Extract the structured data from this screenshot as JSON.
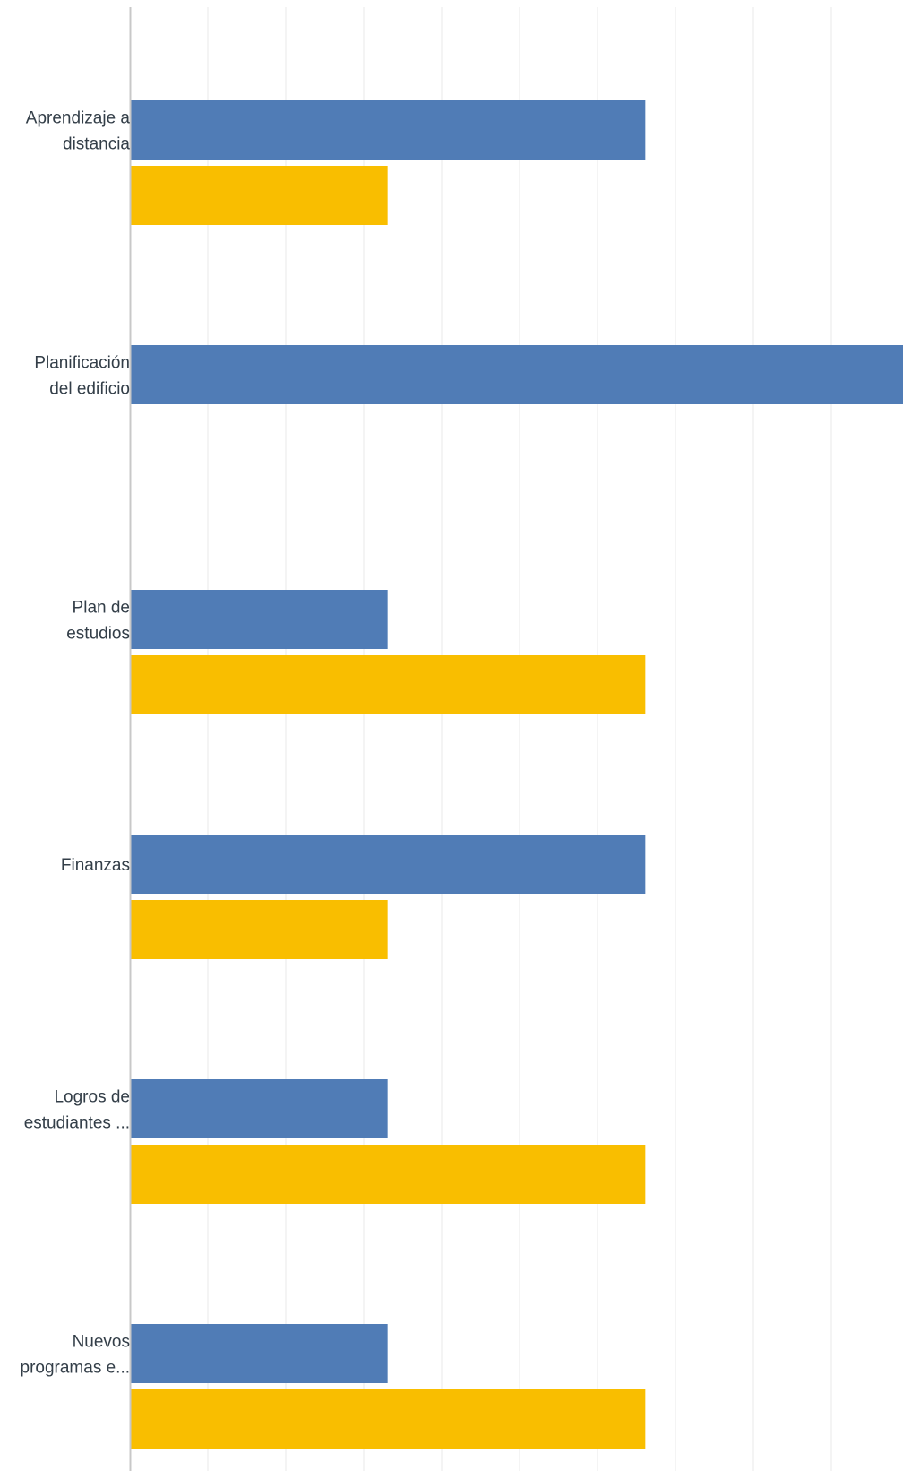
{
  "chart_data": {
    "type": "bar",
    "orientation": "horizontal",
    "categories": [
      [
        "Aprendizaje a",
        "distancia"
      ],
      [
        "Planificación",
        "del edificio"
      ],
      [
        "Plan de",
        "estudios"
      ],
      [
        "Finanzas"
      ],
      [
        "Logros de",
        "estudiantes ..."
      ],
      [
        "Nuevos",
        "programas e..."
      ]
    ],
    "series": [
      {
        "color": "#507cb6",
        "values": [
          2,
          3,
          1,
          2,
          1,
          1
        ]
      },
      {
        "color": "#f9be00",
        "values": [
          1,
          0,
          2,
          1,
          2,
          2
        ]
      }
    ],
    "xlim": [
      0,
      3
    ],
    "grid": true,
    "gridline_count": 10,
    "title": "",
    "xlabel": "",
    "ylabel": ""
  }
}
